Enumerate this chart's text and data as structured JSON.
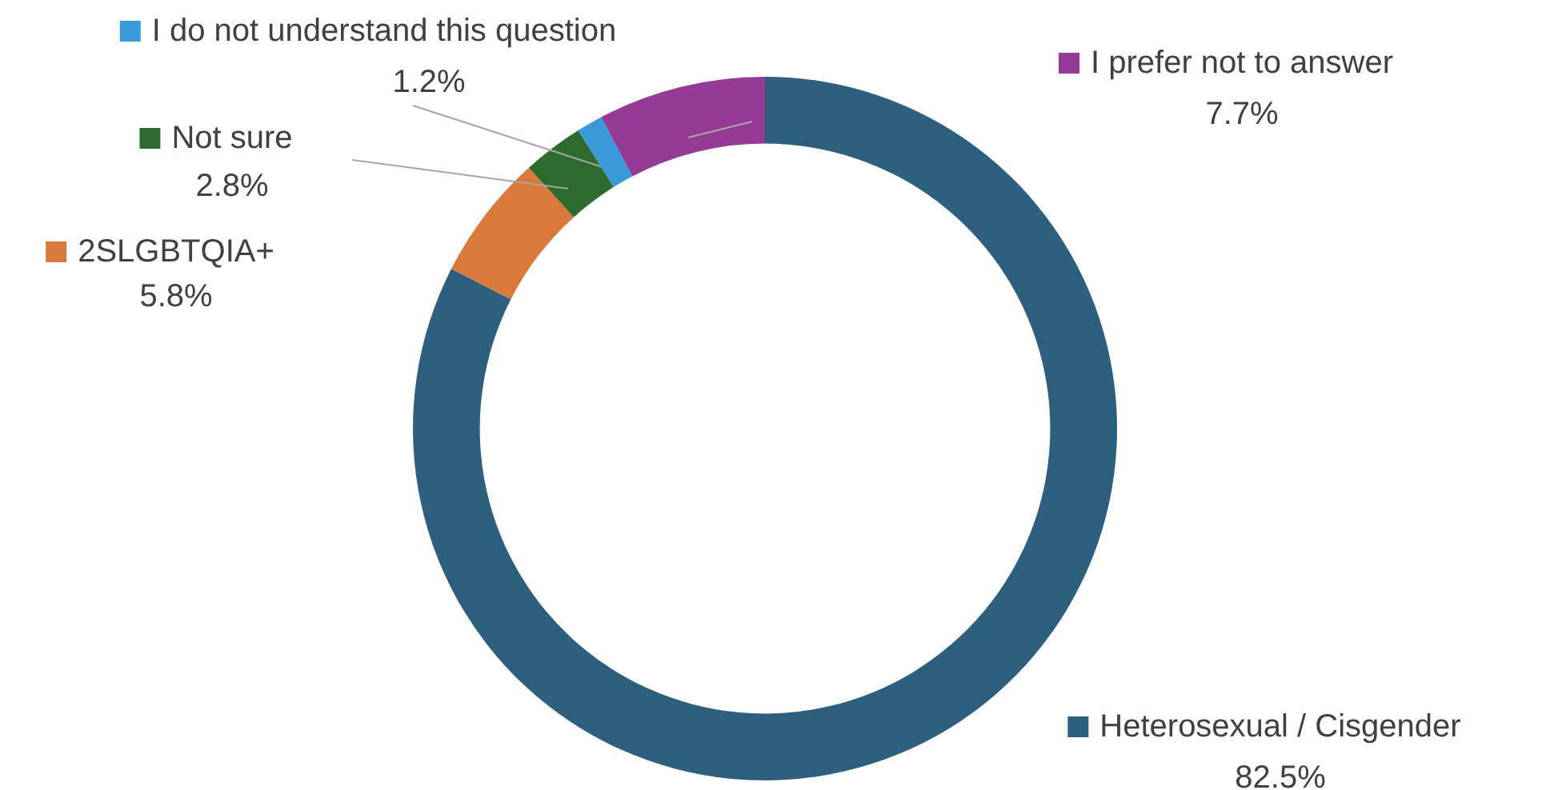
{
  "chart_data": {
    "type": "donut",
    "categories": [
      "Heterosexual / Cisgender",
      "2SLGBTQIA+",
      "Not sure",
      "I do not understand this question",
      "I prefer not to answer"
    ],
    "values": [
      82.5,
      5.8,
      2.8,
      1.2,
      7.7
    ],
    "value_labels": [
      "82.5%",
      "5.8%",
      "2.8%",
      "1.2%",
      "7.7%"
    ],
    "colors": [
      "#2e5f7f",
      "#d97a3c",
      "#2e6b2e",
      "#3a9ad9",
      "#953a95"
    ],
    "legend": "left"
  }
}
